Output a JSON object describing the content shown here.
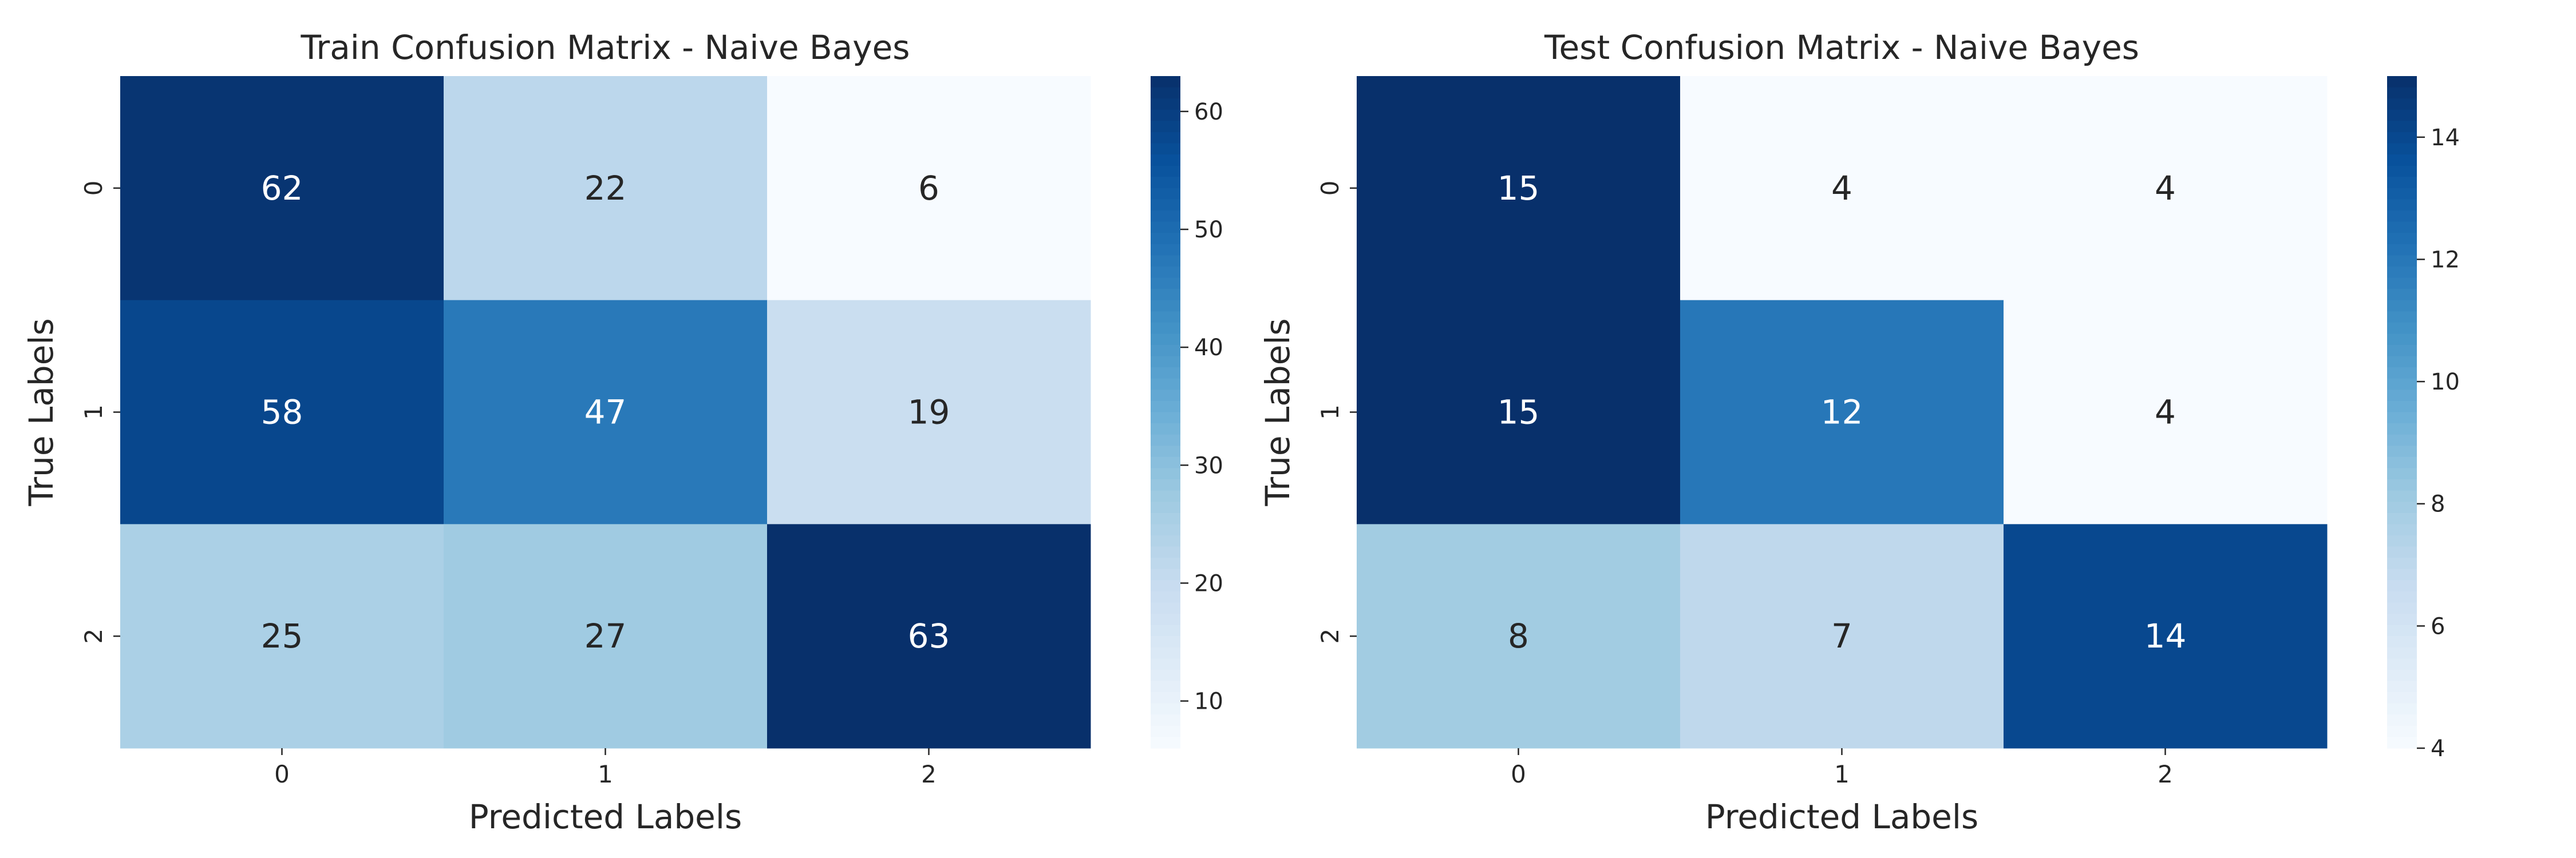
{
  "chart_data": [
    {
      "type": "heatmap",
      "title": "Train Confusion Matrix - Naive Bayes",
      "xlabel": "Predicted Labels",
      "ylabel": "True Labels",
      "x_categories": [
        "0",
        "1",
        "2"
      ],
      "y_categories": [
        "0",
        "1",
        "2"
      ],
      "values": [
        [
          62,
          22,
          6
        ],
        [
          58,
          47,
          19
        ],
        [
          25,
          27,
          63
        ]
      ],
      "colormap": "Blues",
      "colorbar": {
        "range": [
          6,
          63
        ],
        "ticks": [
          10,
          20,
          30,
          40,
          50,
          60
        ]
      },
      "grid": false
    },
    {
      "type": "heatmap",
      "title": "Test Confusion Matrix - Naive Bayes",
      "xlabel": "Predicted Labels",
      "ylabel": "True Labels",
      "x_categories": [
        "0",
        "1",
        "2"
      ],
      "y_categories": [
        "0",
        "1",
        "2"
      ],
      "values": [
        [
          15,
          4,
          4
        ],
        [
          15,
          12,
          4
        ],
        [
          8,
          7,
          14
        ]
      ],
      "colormap": "Blues",
      "colorbar": {
        "range": [
          4,
          15
        ],
        "ticks": [
          4,
          6,
          8,
          10,
          12,
          14
        ]
      },
      "grid": false
    }
  ]
}
